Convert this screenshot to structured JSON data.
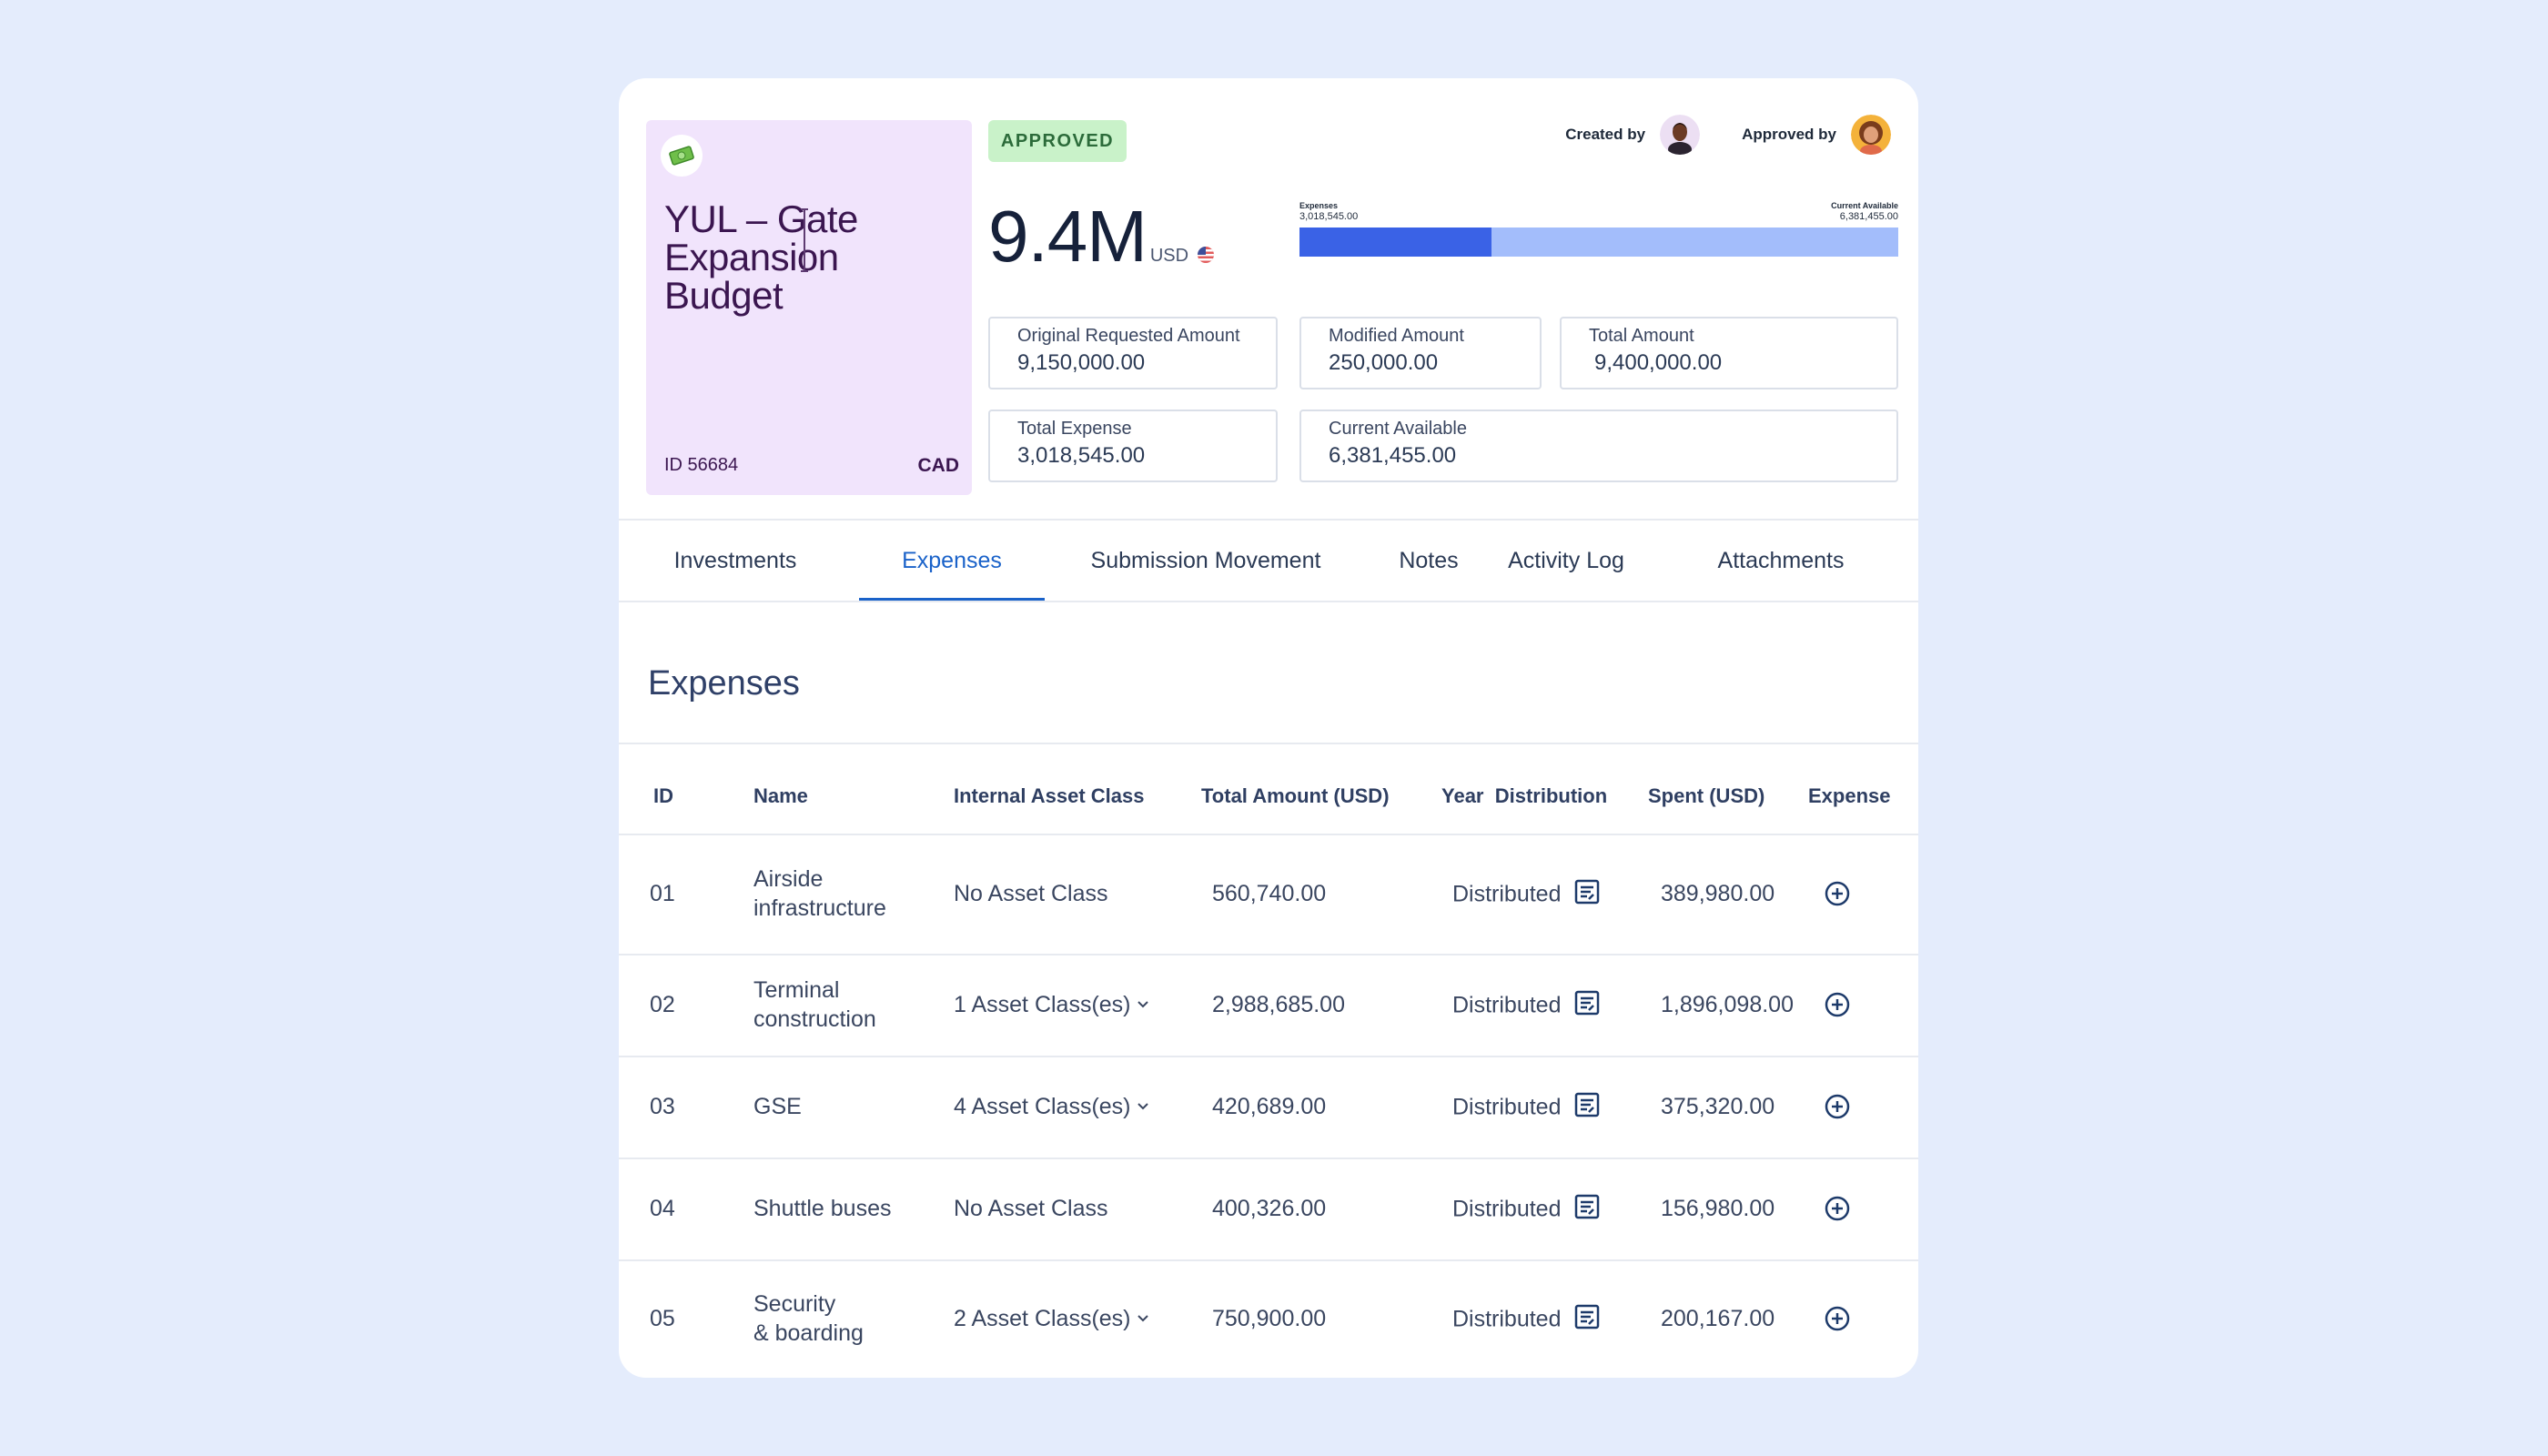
{
  "budget": {
    "title": "YUL – Gate Expansion Budget",
    "id_label": "ID 56684",
    "currency": "CAD",
    "icon": "money-icon"
  },
  "status": "APPROVED",
  "people": {
    "created_by_label": "Created by",
    "approved_by_label": "Approved by"
  },
  "summary": {
    "amount": "9.4M",
    "amount_currency": "USD",
    "progress": {
      "expenses_label": "Expenses",
      "expenses_value": "3,018,545.00",
      "available_label": "Current Available",
      "available_value": "6,381,455.00",
      "fraction_spent": 0.321
    }
  },
  "fields": {
    "original": {
      "label": "Original Requested Amount",
      "value": "9,150,000.00"
    },
    "modified": {
      "label": "Modified Amount",
      "value": "250,000.00"
    },
    "total": {
      "label": "Total Amount",
      "value": "9,400,000.00"
    },
    "total_expense": {
      "label": "Total Expense",
      "value": "3,018,545.00"
    },
    "current_available": {
      "label": "Current Available",
      "value": "6,381,455.00"
    }
  },
  "tabs": [
    "Investments",
    "Expenses",
    "Submission Movement",
    "Notes",
    "Activity Log",
    "Attachments"
  ],
  "active_tab": "Expenses",
  "section_title": "Expenses",
  "table": {
    "headers": [
      "ID",
      "Name",
      "Internal Asset Class",
      "Total Amount (USD)",
      "Year  Distribution",
      "Spent (USD)",
      "Expense"
    ],
    "rows": [
      {
        "id": "01",
        "name1": "Airside",
        "name2": "infrastructure",
        "asset": "No Asset Class",
        "has_dropdown": false,
        "total": "560,740.00",
        "dist": "Distributed",
        "spent": "389,980.00"
      },
      {
        "id": "02",
        "name1": "Terminal",
        "name2": "construction",
        "asset": "1 Asset Class(es)",
        "has_dropdown": true,
        "total": "2,988,685.00",
        "dist": "Distributed",
        "spent": "1,896,098.00"
      },
      {
        "id": "03",
        "name1": "GSE",
        "name2": "",
        "asset": "4 Asset Class(es)",
        "has_dropdown": true,
        "total": "420,689.00",
        "dist": "Distributed",
        "spent": "375,320.00"
      },
      {
        "id": "04",
        "name1": "Shuttle buses",
        "name2": "",
        "asset": "No Asset Class",
        "has_dropdown": false,
        "total": "400,326.00",
        "dist": "Distributed",
        "spent": "156,980.00"
      },
      {
        "id": "05",
        "name1": "Security",
        "name2": "& boarding",
        "asset": "2 Asset Class(es)",
        "has_dropdown": true,
        "total": "750,900.00",
        "dist": "Distributed",
        "spent": "200,167.00"
      }
    ]
  },
  "colors": {
    "tile": "#f1e4fc",
    "accent": "#1a62c9",
    "bar_spent": "#3a62e6",
    "bar_rest": "#a3bdfb",
    "approved_bg": "#c9f2c9"
  }
}
